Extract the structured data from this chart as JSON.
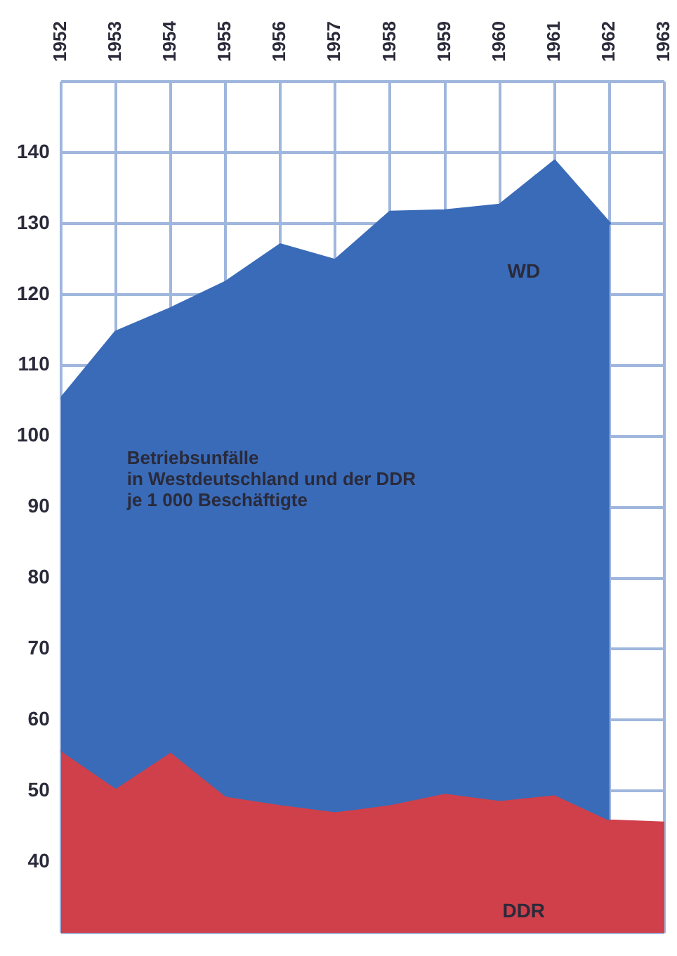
{
  "chart_data": {
    "type": "area",
    "title": "Betriebsunfälle\nin Westdeutschland und der DDR\nje 1 000 Beschäftigte",
    "x": [
      1952,
      1953,
      1954,
      1955,
      1956,
      1957,
      1958,
      1959,
      1960,
      1961,
      1962,
      1963
    ],
    "series": [
      {
        "name": "WD",
        "color": "#3a6bb8",
        "values": [
          105.3,
          114.7,
          118,
          121.7,
          127,
          124.8,
          131.6,
          131.8,
          132.6,
          138.8,
          130,
          null
        ]
      },
      {
        "name": "DDR",
        "color": "#d0404a",
        "values": [
          55.6,
          50.3,
          55.4,
          49.2,
          48,
          47,
          48,
          49.6,
          48.6,
          49.4,
          45.8,
          45.5
        ]
      }
    ],
    "xlim": [
      1952,
      1963
    ],
    "xticks": [
      1952,
      1953,
      1954,
      1955,
      1956,
      1957,
      1958,
      1959,
      1960,
      1961,
      1962,
      1963
    ],
    "ylim": [
      30,
      150
    ],
    "yticks": [
      {
        "value": 30,
        "label": null
      },
      40,
      50,
      60,
      70,
      80,
      90,
      100,
      110,
      120,
      130,
      140,
      {
        "value": 150,
        "label": null
      }
    ],
    "grid": true,
    "legend": false
  }
}
